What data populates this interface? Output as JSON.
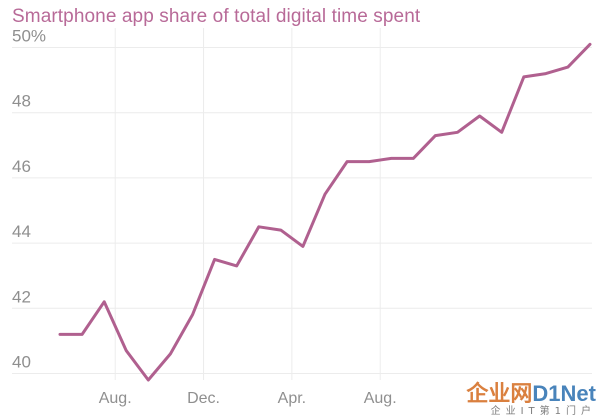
{
  "chart_data": {
    "type": "line",
    "title": "Smartphone app share of total digital time spent",
    "xlabel": "",
    "ylabel": "",
    "ylim": [
      39.8,
      50.6
    ],
    "yticks": [
      40,
      42,
      44,
      46,
      48,
      50
    ],
    "ytick_labels": [
      "40",
      "42",
      "44",
      "46",
      "48",
      "50%"
    ],
    "x_tick_labels": [
      "Aug.",
      "Dec.",
      "Apr.",
      "Aug."
    ],
    "x_tick_indices": [
      2.5,
      6.5,
      10.5,
      14.5
    ],
    "grid": true,
    "series": [
      {
        "values": [
          41.2,
          41.2,
          42.2,
          40.7,
          39.8,
          40.6,
          41.8,
          43.5,
          43.3,
          44.5,
          44.4,
          43.9,
          45.5,
          46.5,
          46.5,
          46.6,
          46.6,
          47.3,
          47.4,
          47.9,
          47.4,
          49.1,
          49.2,
          49.4,
          50.1
        ],
        "color": "#b0608f"
      }
    ]
  },
  "watermark": {
    "logo_main": "企业网",
    "logo_accent": "D1Net",
    "subtitle": "企业IT第1门户"
  }
}
